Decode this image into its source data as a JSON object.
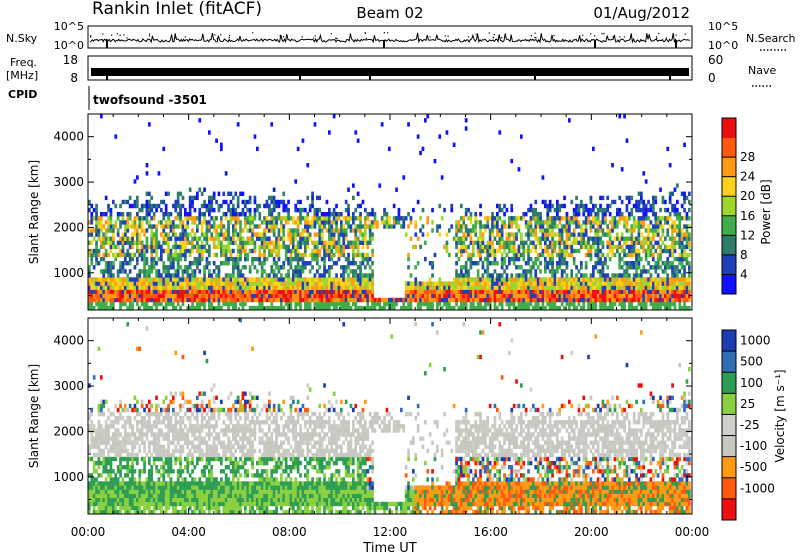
{
  "header": {
    "station": "Rankin Inlet (fitACF)",
    "beam": "Beam 02",
    "date": "01/Aug/2012"
  },
  "strip_panels": {
    "nsky_label": "N.Sky",
    "nsky_ticks": [
      "10^5",
      "10^0"
    ],
    "nsearch_label": "N.Search",
    "nsearch_ticks": [
      "10^5",
      "10^0"
    ],
    "freq_label_1": "Freq.",
    "freq_label_2": "[MHz]",
    "freq_ticks": [
      "18",
      "8"
    ],
    "nave_label": "Nave",
    "nave_ticks": [
      "60",
      "0"
    ],
    "cpid_label": "CPID",
    "cpid_value": "twofsound -3501"
  },
  "colors": {
    "power_scale": [
      "#1010ff",
      "#1e40b8",
      "#2e7d6a",
      "#3fae4a",
      "#9ed62e",
      "#ffd21a",
      "#ff9a14",
      "#ff5a10",
      "#ee1010"
    ],
    "velocity_scale": [
      "#ee1010",
      "#ff5a10",
      "#ff9a14",
      "#c8c8c0",
      "#cfcfca",
      "#8ad040",
      "#2f9e55",
      "#2f6fb8",
      "#1a3db0"
    ]
  },
  "chart_data": [
    {
      "type": "heatmap",
      "title": "Power",
      "xlabel": "",
      "ylabel": "Slant Range [km]",
      "x_ticks": [
        "00:00",
        "04:00",
        "08:00",
        "12:00",
        "16:00",
        "20:00",
        "00:00"
      ],
      "y_ticks": [
        1000,
        2000,
        3000,
        4000
      ],
      "ylim": [
        180,
        4500
      ],
      "colorbar": {
        "label": "Power [dB]",
        "ticks": [
          4,
          8,
          12,
          16,
          20,
          24,
          28
        ]
      }
    },
    {
      "type": "heatmap",
      "title": "Velocity",
      "xlabel": "Time UT",
      "ylabel": "Slant Range [km]",
      "x_ticks": [
        "00:00",
        "04:00",
        "08:00",
        "12:00",
        "16:00",
        "20:00",
        "00:00"
      ],
      "y_ticks": [
        1000,
        2000,
        3000,
        4000
      ],
      "ylim": [
        180,
        4500
      ],
      "colorbar": {
        "label": "Velocity [m s⁻¹]",
        "ticks": [
          1000,
          500,
          100,
          25,
          -25,
          -100,
          -500,
          -1000
        ]
      }
    }
  ]
}
